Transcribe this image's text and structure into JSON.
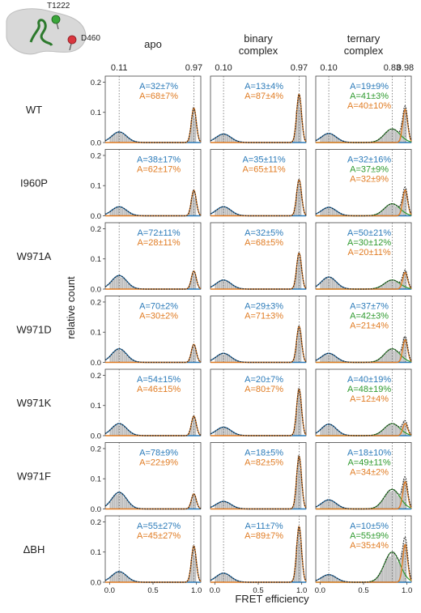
{
  "inset": {
    "label_top": "T1222",
    "label_right": "D460",
    "colors": {
      "body": "#d8d8d8",
      "top_marker": "#3aa63a",
      "right_marker": "#d9363e",
      "helix": "#2d7a2d"
    }
  },
  "chart_data": {
    "type": "area",
    "xlabel": "FRET efficiency",
    "ylabel": "relative count",
    "xlim": [
      -0.05,
      1.05
    ],
    "ylim": [
      0,
      0.22
    ],
    "x_ticks": [
      "0.0",
      "0.5",
      "1.0"
    ],
    "y_ticks": [
      "0.0",
      "0.1",
      "0.2"
    ],
    "columns": [
      {
        "title": [
          "apo"
        ],
        "peaks": [
          {
            "label": "0.11",
            "x": 0.11
          },
          {
            "label": "0.97",
            "x": 0.97
          }
        ]
      },
      {
        "title": [
          "binary",
          "complex"
        ],
        "peaks": [
          {
            "label": "0.10",
            "x": 0.1
          },
          {
            "label": "0.97",
            "x": 0.97
          }
        ]
      },
      {
        "title": [
          "ternary",
          "complex"
        ],
        "peaks": [
          {
            "label": "0.10",
            "x": 0.1
          },
          {
            "label": "0.83",
            "x": 0.83
          },
          {
            "label": "0.98",
            "x": 0.98
          }
        ]
      }
    ],
    "rows": [
      "WT",
      "I960P",
      "W971A",
      "W971D",
      "W971K",
      "W971F",
      "ΔBH"
    ],
    "colors": {
      "low": "#2a7ab9",
      "mid": "#2e9a2e",
      "high": "#e07b22",
      "hist": "#bdbdbd",
      "fit": "#222222"
    },
    "panels": [
      [
        {
          "texts": [
            "A=32±7%",
            "A=68±7%"
          ],
          "h_low": 0.035,
          "h_high": 0.115
        },
        {
          "texts": [
            "A=13±4%",
            "A=87±4%"
          ],
          "h_low": 0.028,
          "h_high": 0.16
        },
        {
          "texts": [
            "A=19±9%",
            "A=41±3%",
            "A=40±10%"
          ],
          "h_low": 0.03,
          "h_mid": 0.045,
          "h_high": 0.11
        }
      ],
      [
        {
          "texts": [
            "A=38±17%",
            "A=62±17%"
          ],
          "h_low": 0.03,
          "h_high": 0.085
        },
        {
          "texts": [
            "A=35±11%",
            "A=65±11%"
          ],
          "h_low": 0.03,
          "h_high": 0.12
        },
        {
          "texts": [
            "A=32±16%",
            "A=37±9%",
            "A=32±9%"
          ],
          "h_low": 0.028,
          "h_mid": 0.04,
          "h_high": 0.085
        }
      ],
      [
        {
          "texts": [
            "A=72±11%",
            "A=28±11%"
          ],
          "h_low": 0.045,
          "h_high": 0.06
        },
        {
          "texts": [
            "A=32±5%",
            "A=68±5%"
          ],
          "h_low": 0.03,
          "h_high": 0.12
        },
        {
          "texts": [
            "A=50±21%",
            "A=30±12%",
            "A=20±11%"
          ],
          "h_low": 0.04,
          "h_mid": 0.03,
          "h_high": 0.055
        }
      ],
      [
        {
          "texts": [
            "A=70±2%",
            "A=30±2%"
          ],
          "h_low": 0.045,
          "h_high": 0.06
        },
        {
          "texts": [
            "A=29±3%",
            "A=71±3%"
          ],
          "h_low": 0.03,
          "h_high": 0.12
        },
        {
          "texts": [
            "A=37±7%",
            "A=42±3%",
            "A=21±4%"
          ],
          "h_low": 0.03,
          "h_mid": 0.045,
          "h_high": 0.075
        }
      ],
      [
        {
          "texts": [
            "A=54±15%",
            "A=46±15%"
          ],
          "h_low": 0.04,
          "h_high": 0.065
        },
        {
          "texts": [
            "A=20±7%",
            "A=80±7%"
          ],
          "h_low": 0.028,
          "h_high": 0.155
        },
        {
          "texts": [
            "A=40±19%",
            "A=48±19%",
            "A=12±4%"
          ],
          "h_low": 0.038,
          "h_mid": 0.04,
          "h_high": 0.04
        }
      ],
      [
        {
          "texts": [
            "A=78±9%",
            "A=22±9%"
          ],
          "h_low": 0.055,
          "h_high": 0.05
        },
        {
          "texts": [
            "A=18±5%",
            "A=82±5%"
          ],
          "h_low": 0.025,
          "h_high": 0.175
        },
        {
          "texts": [
            "A=18±10%",
            "A=49±11%",
            "A=34±2%"
          ],
          "h_low": 0.03,
          "h_mid": 0.065,
          "h_high": 0.09
        }
      ],
      [
        {
          "texts": [
            "A=55±27%",
            "A=45±27%"
          ],
          "h_low": 0.035,
          "h_high": 0.12
        },
        {
          "texts": [
            "A=11±7%",
            "A=89±7%"
          ],
          "h_low": 0.03,
          "h_high": 0.185
        },
        {
          "texts": [
            "A=10±5%",
            "A=55±9%",
            "A=35±4%"
          ],
          "h_low": 0.025,
          "h_mid": 0.1,
          "h_high": 0.125
        }
      ]
    ]
  }
}
